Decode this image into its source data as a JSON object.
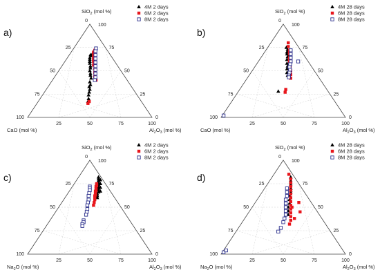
{
  "chart_data": [
    {
      "type": "scatter",
      "panel_label": "a)",
      "top_vertex_label": "SiO",
      "top_vertex_sub": "2",
      "top_vertex_unit": " (mol %)",
      "left_vertex_label": "CaO (mol %)",
      "right_vertex_label": "Al",
      "right_vertex_sub": "2",
      "right_vertex_label2": "O",
      "right_vertex_sub2": "3",
      "right_vertex_unit": " (mol %)",
      "top_ticks": [
        "0",
        "100"
      ],
      "left_ticks": [
        "25",
        "50",
        "75",
        "100"
      ],
      "right_ticks": [
        "75",
        "50",
        "25",
        "0"
      ],
      "bottom_ticks": [
        "25",
        "50",
        "75",
        "100"
      ],
      "series": [
        {
          "name": "4M 2 days",
          "color": "#000000",
          "marker": "triangle",
          "points": [
            [
              67,
              16,
              17
            ],
            [
              64,
              18,
              18
            ],
            [
              60,
              20,
              20
            ],
            [
              55,
              22,
              23
            ],
            [
              50,
              25,
              25
            ],
            [
              45,
              27,
              28
            ],
            [
              38,
              31,
              31
            ],
            [
              33,
              34,
              33
            ],
            [
              27,
              37,
              36
            ],
            [
              24,
              39,
              37
            ],
            [
              20,
              41,
              39
            ],
            [
              17,
              43,
              40
            ],
            [
              68,
              14,
              18
            ],
            [
              66,
              16,
              18
            ],
            [
              62,
              19,
              19
            ],
            [
              58,
              21,
              21
            ],
            [
              53,
              23,
              24
            ],
            [
              47,
              26,
              27
            ],
            [
              42,
              28,
              30
            ],
            [
              35,
              32,
              33
            ],
            [
              30,
              35,
              35
            ]
          ]
        },
        {
          "name": "6M 2 days",
          "color": "#e8161c",
          "marker": "square",
          "points": [
            [
              72,
              10,
              18
            ],
            [
              70,
              11,
              19
            ],
            [
              68,
              13,
              19
            ],
            [
              64,
              15,
              21
            ],
            [
              60,
              17,
              23
            ],
            [
              56,
              19,
              25
            ],
            [
              52,
              20,
              28
            ],
            [
              48,
              22,
              30
            ],
            [
              44,
              24,
              32
            ],
            [
              40,
              25,
              35
            ],
            [
              17,
              42,
              41
            ],
            [
              15,
              44,
              41
            ],
            [
              70,
              12,
              18
            ],
            [
              66,
              14,
              20
            ],
            [
              62,
              16,
              22
            ],
            [
              57,
              18,
              25
            ]
          ]
        },
        {
          "name": "8M 2 days",
          "color": "#2b2f8c",
          "marker": "open-square",
          "points": [
            [
              74,
              8,
              18
            ],
            [
              71,
              10,
              19
            ],
            [
              67,
              12,
              21
            ],
            [
              63,
              14,
              23
            ],
            [
              59,
              16,
              25
            ],
            [
              55,
              18,
              27
            ],
            [
              51,
              20,
              29
            ],
            [
              47,
              22,
              31
            ],
            [
              43,
              24,
              33
            ],
            [
              40,
              26,
              34
            ]
          ]
        }
      ]
    },
    {
      "type": "scatter",
      "panel_label": "b)",
      "top_vertex_label": "SiO",
      "top_vertex_sub": "2",
      "top_vertex_unit": " (mol %)",
      "left_vertex_label": "CaO (mol %)",
      "right_vertex_label": "Al",
      "right_vertex_sub": "2",
      "right_vertex_label2": "O",
      "right_vertex_sub2": "3",
      "right_vertex_unit": " (mol %)",
      "top_ticks": [
        "0",
        "100"
      ],
      "left_ticks": [
        "25",
        "50",
        "75",
        "100"
      ],
      "right_ticks": [
        "75",
        "50",
        "25",
        "0"
      ],
      "bottom_ticks": [
        "25",
        "50",
        "75",
        "100"
      ],
      "series": [
        {
          "name": "4M 28 days",
          "color": "#000000",
          "marker": "triangle",
          "points": [
            [
              75,
              10,
              15
            ],
            [
              73,
              10,
              17
            ],
            [
              70,
              12,
              18
            ],
            [
              68,
              13,
              19
            ],
            [
              65,
              14,
              21
            ],
            [
              62,
              16,
              22
            ],
            [
              58,
              18,
              24
            ],
            [
              55,
              19,
              26
            ],
            [
              52,
              21,
              27
            ],
            [
              48,
              23,
              29
            ],
            [
              45,
              24,
              31
            ],
            [
              28,
              40,
              32
            ],
            [
              71,
              11,
              18
            ],
            [
              66,
              13,
              21
            ]
          ]
        },
        {
          "name": "6M 28 days",
          "color": "#e8161c",
          "marker": "square",
          "points": [
            [
              80,
              6,
              14
            ],
            [
              76,
              8,
              16
            ],
            [
              72,
              9,
              19
            ],
            [
              68,
              11,
              21
            ],
            [
              64,
              13,
              23
            ],
            [
              60,
              15,
              25
            ],
            [
              55,
              17,
              28
            ],
            [
              50,
              19,
              31
            ],
            [
              46,
              21,
              33
            ],
            [
              42,
              23,
              35
            ],
            [
              30,
              33,
              37
            ],
            [
              27,
              35,
              38
            ],
            [
              70,
              10,
              20
            ],
            [
              62,
              14,
              24
            ]
          ]
        },
        {
          "name": "8M 28 days",
          "color": "#2b2f8c",
          "marker": "open-square",
          "points": [
            [
              72,
              8,
              20
            ],
            [
              68,
              10,
              22
            ],
            [
              64,
              12,
              24
            ],
            [
              60,
              14,
              26
            ],
            [
              57,
              16,
              27
            ],
            [
              54,
              18,
              28
            ],
            [
              51,
              19,
              30
            ],
            [
              48,
              21,
              31
            ],
            [
              45,
              23,
              32
            ],
            [
              43,
              24,
              33
            ],
            [
              2,
              97,
              1
            ],
            [
              60,
              8,
              32
            ]
          ]
        }
      ]
    },
    {
      "type": "scatter",
      "panel_label": "c)",
      "top_vertex_label": "SiO",
      "top_vertex_sub": "2",
      "top_vertex_unit": " (mol %)",
      "left_vertex_label": "Na",
      "left_vertex_sub": "2",
      "left_vertex_label2": "O (mol %)",
      "right_vertex_label": "Al",
      "right_vertex_sub": "2",
      "right_vertex_label2": "O",
      "right_vertex_sub2": "3",
      "right_vertex_unit": " (mol %)",
      "top_ticks": [
        "0",
        "100"
      ],
      "left_ticks": [
        "25",
        "50",
        "75",
        "100"
      ],
      "right_ticks": [
        "75",
        "50",
        "25",
        "0"
      ],
      "bottom_ticks": [
        "25",
        "50",
        "75",
        "100"
      ],
      "series": [
        {
          "name": "4M 2 days",
          "color": "#000000",
          "marker": "triangle",
          "points": [
            [
              82,
              2,
              16
            ],
            [
              80,
              3,
              17
            ],
            [
              78,
              4,
              18
            ],
            [
              76,
              5,
              19
            ],
            [
              74,
              6,
              20
            ],
            [
              72,
              7,
              21
            ],
            [
              70,
              8,
              22
            ],
            [
              68,
              9,
              23
            ],
            [
              66,
              10,
              24
            ],
            [
              64,
              12,
              24
            ],
            [
              62,
              13,
              25
            ],
            [
              60,
              14,
              26
            ],
            [
              79,
              2,
              19
            ],
            [
              75,
              4,
              21
            ],
            [
              71,
              6,
              23
            ],
            [
              67,
              8,
              25
            ]
          ]
        },
        {
          "name": "6M 2 days",
          "color": "#e8161c",
          "marker": "square",
          "points": [
            [
              75,
              7,
              18
            ],
            [
              72,
              9,
              19
            ],
            [
              70,
              10,
              20
            ],
            [
              67,
              12,
              21
            ],
            [
              65,
              13,
              22
            ],
            [
              62,
              15,
              23
            ],
            [
              60,
              16,
              24
            ],
            [
              58,
              17,
              25
            ],
            [
              55,
              19,
              26
            ],
            [
              52,
              21,
              27
            ],
            [
              73,
              8,
              19
            ],
            [
              68,
              11,
              21
            ],
            [
              63,
              14,
              23
            ]
          ]
        },
        {
          "name": "8M 2 days",
          "color": "#2b2f8c",
          "marker": "open-square",
          "points": [
            [
              72,
              14,
              14
            ],
            [
              70,
              15,
              15
            ],
            [
              68,
              16,
              16
            ],
            [
              65,
              18,
              17
            ],
            [
              62,
              20,
              18
            ],
            [
              58,
              22,
              20
            ],
            [
              55,
              24,
              21
            ],
            [
              52,
              26,
              22
            ],
            [
              48,
              28,
              24
            ],
            [
              45,
              30,
              25
            ],
            [
              42,
              32,
              26
            ],
            [
              36,
              37,
              27
            ],
            [
              34,
              38,
              28
            ],
            [
              32,
              40,
              28
            ],
            [
              30,
              41,
              29
            ]
          ]
        }
      ]
    },
    {
      "type": "scatter",
      "panel_label": "d)",
      "top_vertex_label": "SiO",
      "top_vertex_sub": "2",
      "top_vertex_unit": " (mol %)",
      "left_vertex_label": "Na",
      "left_vertex_sub": "2",
      "left_vertex_label2": "O (mol %)",
      "right_vertex_label": "Al",
      "right_vertex_sub": "2",
      "right_vertex_label2": "O",
      "right_vertex_sub2": "3",
      "right_vertex_unit": " (mol %)",
      "top_ticks": [
        "0",
        "100"
      ],
      "left_ticks": [
        "25",
        "50",
        "75",
        "100"
      ],
      "right_ticks": [
        "75",
        "50",
        "25",
        "0"
      ],
      "bottom_ticks": [
        "25",
        "50",
        "75",
        "100"
      ],
      "series": [
        {
          "name": "4M 28 days",
          "color": "#000000",
          "marker": "triangle",
          "points": [
            [
              82,
              3,
              15
            ],
            [
              78,
              5,
              17
            ],
            [
              74,
              7,
              19
            ],
            [
              70,
              9,
              21
            ],
            [
              66,
              11,
              23
            ],
            [
              62,
              14,
              24
            ],
            [
              58,
              16,
              26
            ],
            [
              54,
              18,
              28
            ],
            [
              50,
              21,
              29
            ],
            [
              46,
              23,
              31
            ],
            [
              42,
              25,
              33
            ],
            [
              76,
              6,
              18
            ],
            [
              68,
              10,
              22
            ]
          ]
        },
        {
          "name": "6M 28 days",
          "color": "#e8161c",
          "marker": "square",
          "points": [
            [
              85,
              3,
              12
            ],
            [
              80,
              4,
              16
            ],
            [
              76,
              6,
              18
            ],
            [
              72,
              8,
              20
            ],
            [
              68,
              10,
              22
            ],
            [
              64,
              12,
              24
            ],
            [
              60,
              14,
              26
            ],
            [
              56,
              16,
              28
            ],
            [
              52,
              18,
              30
            ],
            [
              48,
              20,
              32
            ],
            [
              44,
              22,
              34
            ],
            [
              40,
              24,
              36
            ],
            [
              36,
              26,
              38
            ],
            [
              32,
              29,
              39
            ],
            [
              45,
              14,
              41
            ],
            [
              50,
              18,
              32
            ],
            [
              38,
              22,
              40
            ],
            [
              55,
              10,
              35
            ]
          ]
        },
        {
          "name": "8M 28 days",
          "color": "#2b2f8c",
          "marker": "open-square",
          "points": [
            [
              70,
              12,
              18
            ],
            [
              66,
              14,
              20
            ],
            [
              62,
              16,
              22
            ],
            [
              58,
              19,
              23
            ],
            [
              54,
              21,
              25
            ],
            [
              50,
              23,
              27
            ],
            [
              46,
              25,
              29
            ],
            [
              42,
              27,
              31
            ],
            [
              38,
              30,
              32
            ],
            [
              34,
              33,
              33
            ],
            [
              28,
              38,
              34
            ],
            [
              24,
              42,
              34
            ],
            [
              2,
              97,
              1
            ],
            [
              4,
              94,
              2
            ]
          ]
        }
      ]
    }
  ]
}
